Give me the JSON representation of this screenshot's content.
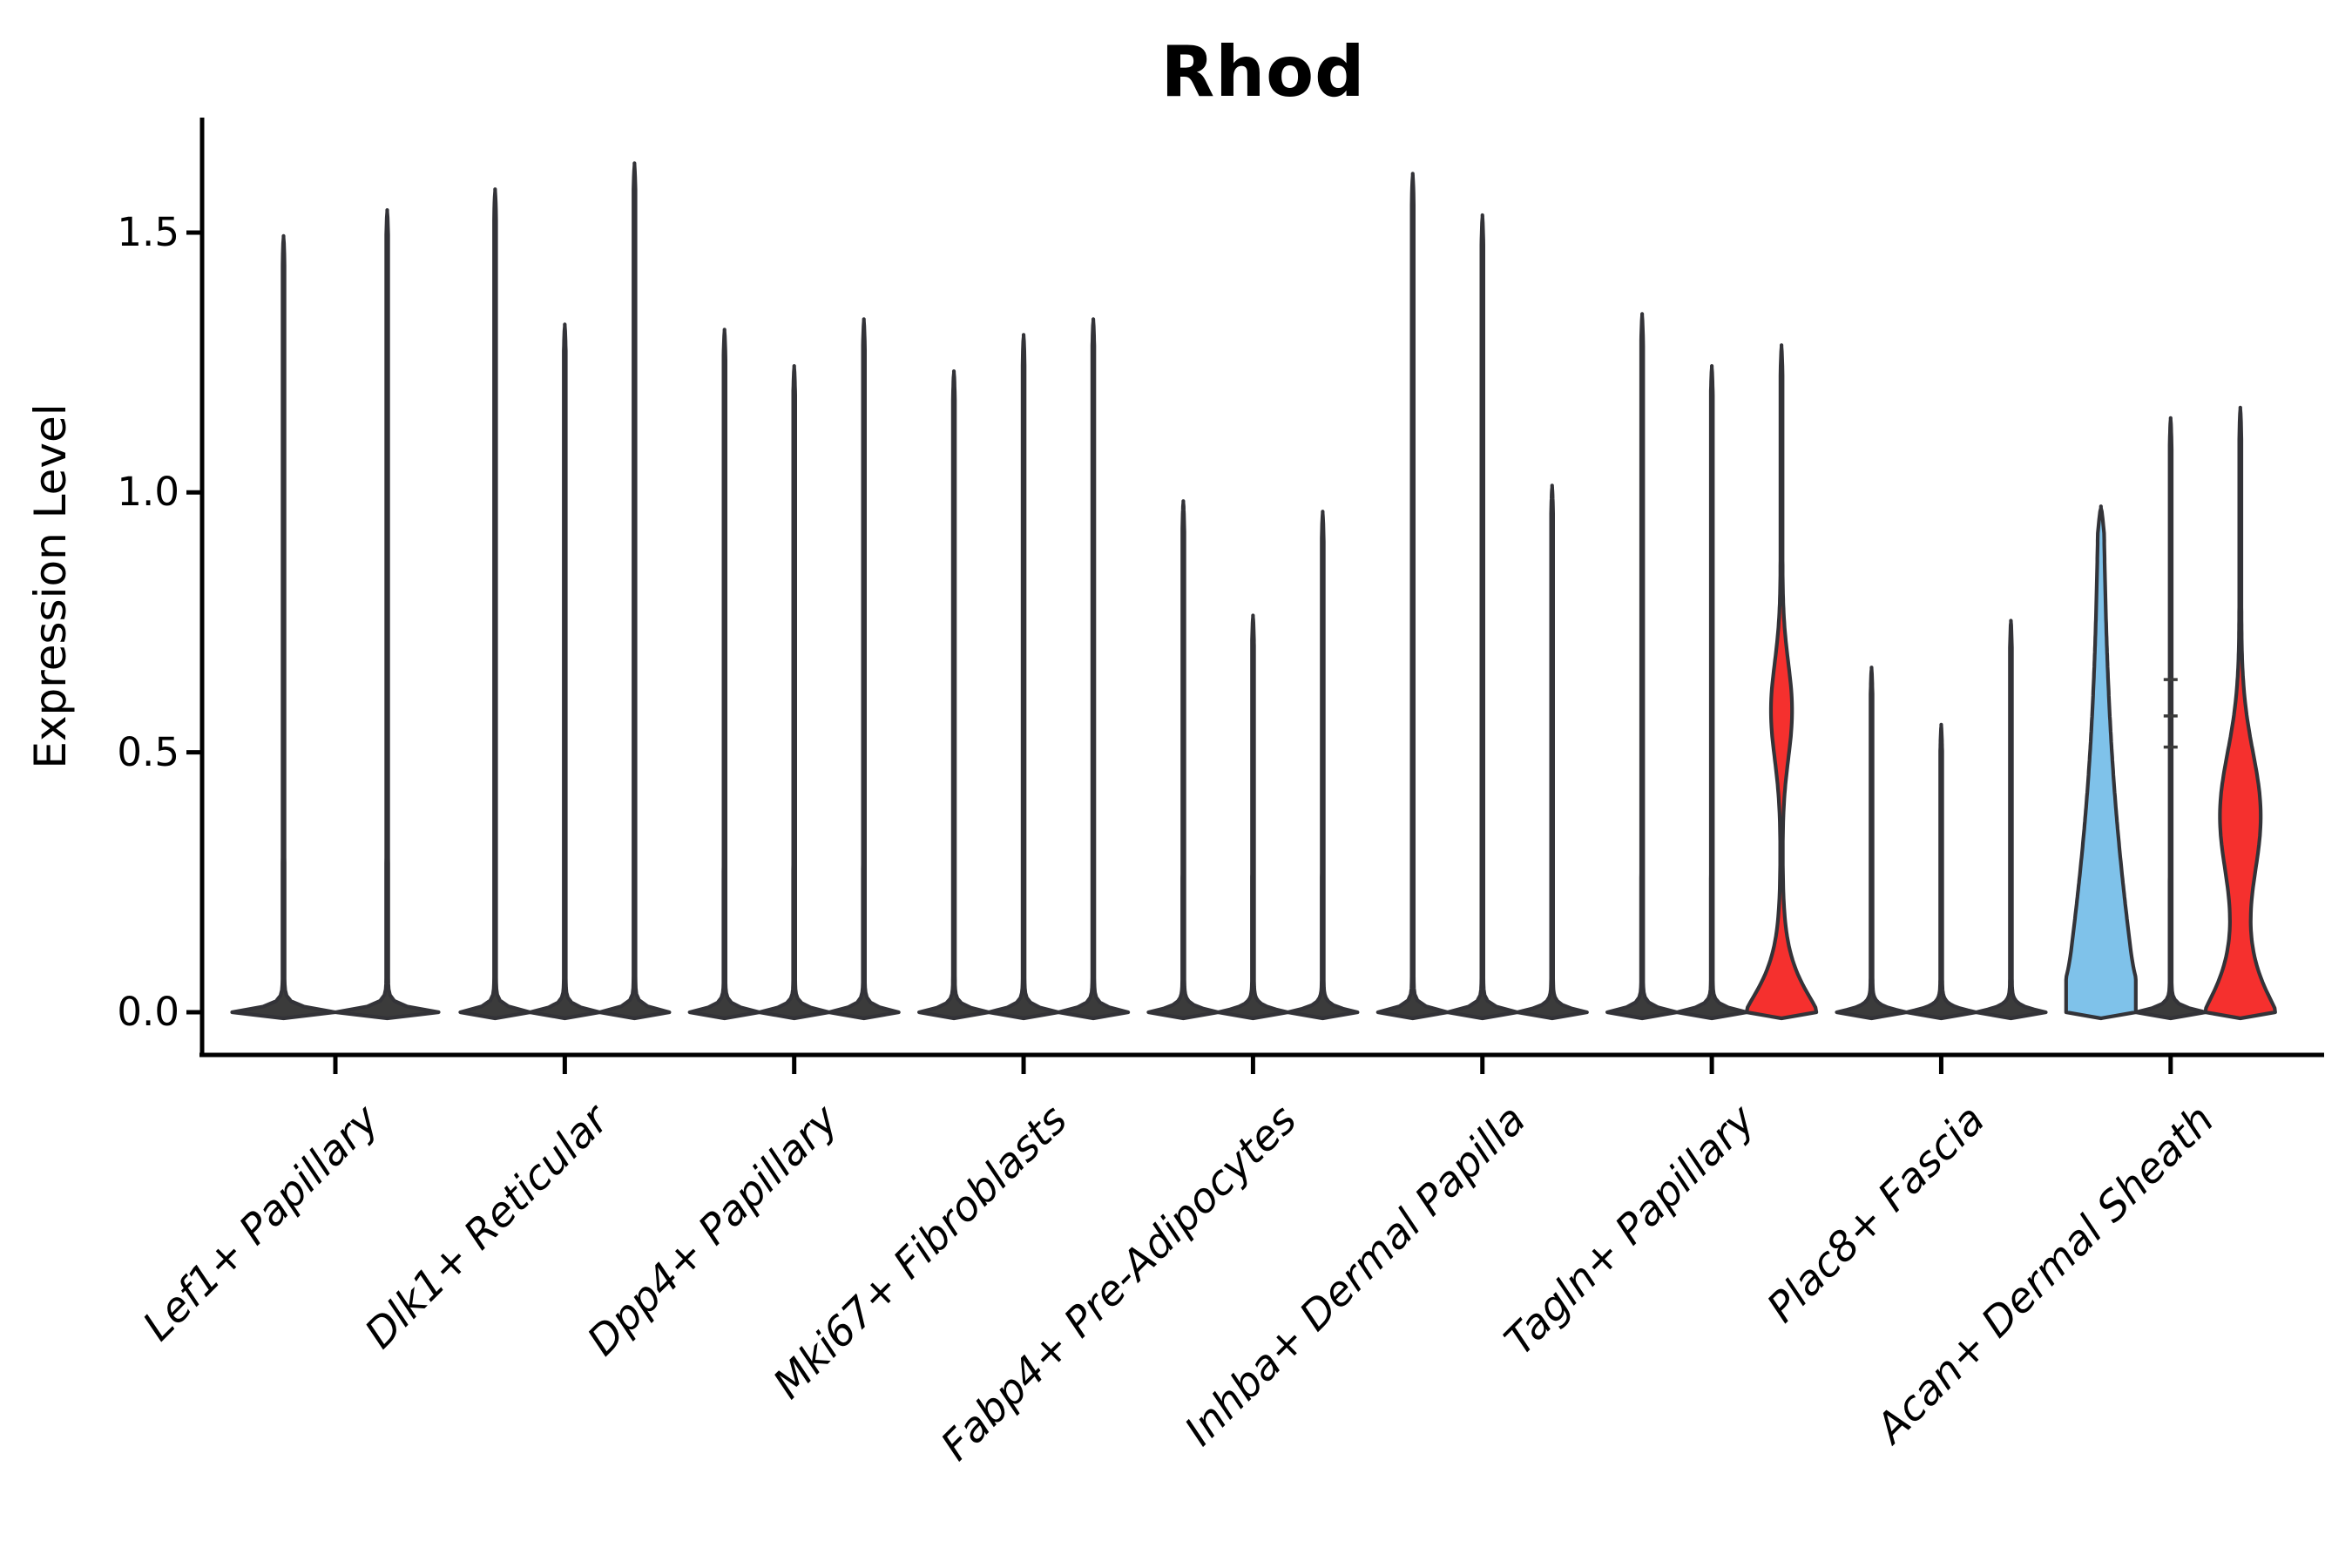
{
  "title": "Rhod",
  "y_axis": {
    "label": "Expression Level",
    "tick_labels": [
      "0.0",
      "0.5",
      "1.0",
      "1.5"
    ]
  },
  "colors": {
    "dark": "#3b3b3b",
    "red": "#f5302e",
    "blue": "#7fc2ea",
    "stroke": "#333338",
    "axis": "#000000"
  },
  "chart_data": {
    "type": "violin",
    "title": "Rhod",
    "xlabel": "",
    "ylabel": "Expression Level",
    "ylim": [
      0,
      1.7
    ],
    "yticks": [
      0.0,
      0.5,
      1.0,
      1.5
    ],
    "grid": false,
    "legend": "none",
    "categories": [
      "Lef1+ Papillary",
      "Dlk1+ Reticular",
      "Dpp4+ Papillary",
      "Mki67+ Fibroblasts",
      "Fabp4+ Pre-Adipocytes",
      "Inhba+ Dermal Papilla",
      "Tagln+ Papillary",
      "Plac8+ Fascia",
      "Acan+ Dermal Sheath"
    ],
    "groups": [
      {
        "label": "Lef1+ Papillary",
        "violins": [
          {
            "max": 1.49,
            "color": "dark"
          },
          {
            "max": 1.54,
            "color": "dark"
          }
        ]
      },
      {
        "label": "Dlk1+ Reticular",
        "violins": [
          {
            "max": 1.58,
            "color": "dark"
          },
          {
            "max": 1.32,
            "color": "dark"
          },
          {
            "max": 1.63,
            "color": "dark"
          }
        ]
      },
      {
        "label": "Dpp4+ Papillary",
        "violins": [
          {
            "max": 1.31,
            "color": "dark"
          },
          {
            "max": 1.24,
            "color": "dark"
          },
          {
            "max": 1.33,
            "color": "dark"
          }
        ]
      },
      {
        "label": "Mki67+ Fibroblasts",
        "violins": [
          {
            "max": 1.23,
            "color": "dark"
          },
          {
            "max": 1.3,
            "color": "dark"
          },
          {
            "max": 1.33,
            "color": "dark"
          }
        ]
      },
      {
        "label": "Fabp4+ Pre-Adipocytes",
        "violins": [
          {
            "max": 0.98,
            "color": "dark"
          },
          {
            "max": 0.76,
            "color": "dark"
          },
          {
            "max": 0.96,
            "color": "dark"
          }
        ]
      },
      {
        "label": "Inhba+ Dermal Papilla",
        "violins": [
          {
            "max": 1.61,
            "color": "dark"
          },
          {
            "max": 1.53,
            "color": "dark"
          },
          {
            "max": 1.01,
            "color": "dark"
          }
        ]
      },
      {
        "label": "Tagln+ Papillary",
        "violins": [
          {
            "max": 1.34,
            "color": "dark"
          },
          {
            "max": 1.24,
            "color": "dark"
          },
          {
            "max": 1.28,
            "color": "red",
            "base": {
              "s": 0.085,
              "p": 1.3
            },
            "bumps": [
              {
                "c": 0.58,
                "s": 0.13,
                "a": 11
              }
            ]
          }
        ]
      },
      {
        "label": "Plac8+ Fascia",
        "violins": [
          {
            "max": 0.66,
            "color": "dark"
          },
          {
            "max": 0.55,
            "color": "dark"
          },
          {
            "max": 0.75,
            "color": "dark"
          }
        ]
      },
      {
        "label": "Acan+ Dermal Sheath",
        "violins": [
          {
            "max": 0.97,
            "color": "blue",
            "base": {
              "s": 0.42,
              "p": 1.3
            },
            "bumps": [
              {
                "c": 0.0,
                "s": 0.06,
                "a": 8
              }
            ]
          },
          {
            "max": 1.14,
            "color": "dark",
            "marks": [
              0.51,
              0.57,
              0.64
            ]
          },
          {
            "max": 1.16,
            "color": "red",
            "base": {
              "s": 0.1,
              "p": 1.2
            },
            "bumps": [
              {
                "c": 0.38,
                "s": 0.17,
                "a": 22
              }
            ]
          }
        ]
      }
    ]
  }
}
